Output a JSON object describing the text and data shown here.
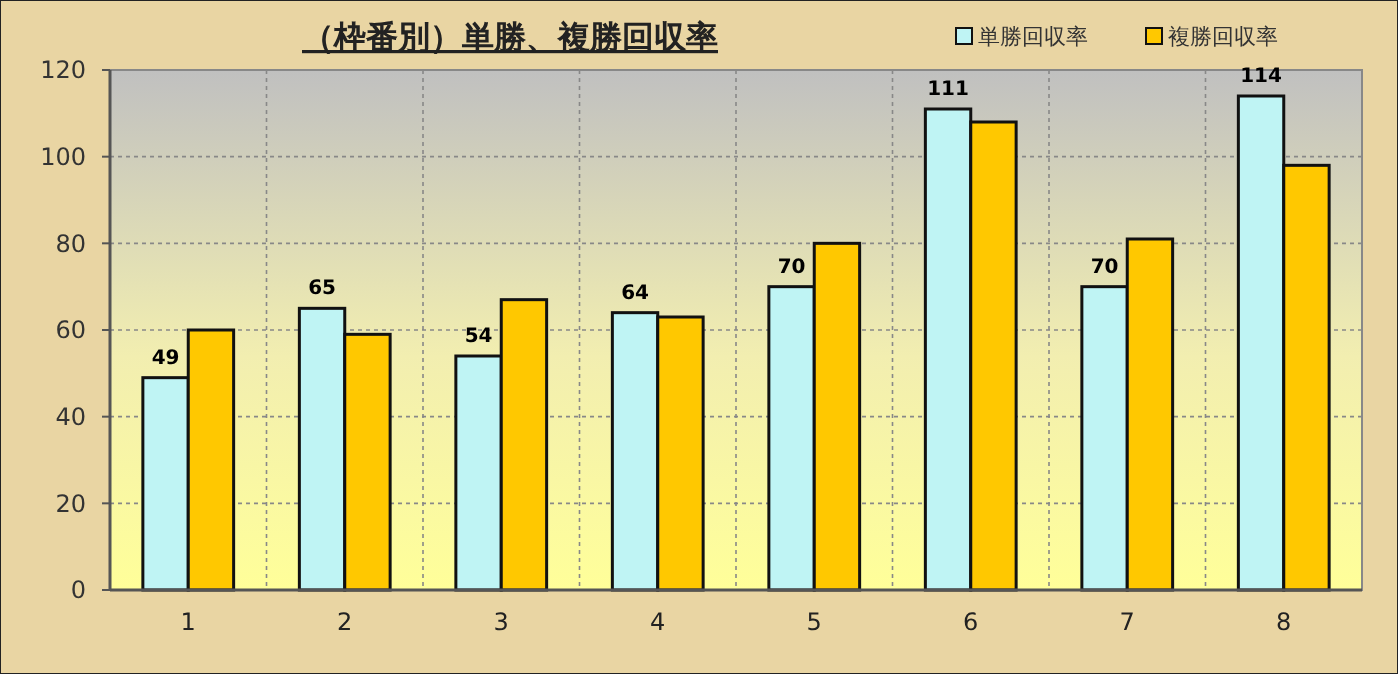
{
  "chart_data": {
    "type": "bar",
    "title": "（枠番別）単勝、複勝回収率",
    "categories": [
      "1",
      "2",
      "3",
      "4",
      "5",
      "6",
      "7",
      "8"
    ],
    "series": [
      {
        "name": "単勝回収率",
        "color": "#bff4f4",
        "values": [
          49,
          65,
          54,
          64,
          70,
          111,
          70,
          114
        ],
        "value_labels": [
          "49",
          "65",
          "54",
          "64",
          "70",
          "111",
          "70",
          "114"
        ]
      },
      {
        "name": "複勝回収率",
        "color": "#ffc800",
        "values": [
          60,
          59,
          67,
          63,
          80,
          108,
          81,
          98
        ]
      }
    ],
    "ylim": [
      0,
      120
    ],
    "yticks": [
      0,
      20,
      40,
      60,
      80,
      100,
      120
    ],
    "grid": true,
    "legend": "top right"
  }
}
